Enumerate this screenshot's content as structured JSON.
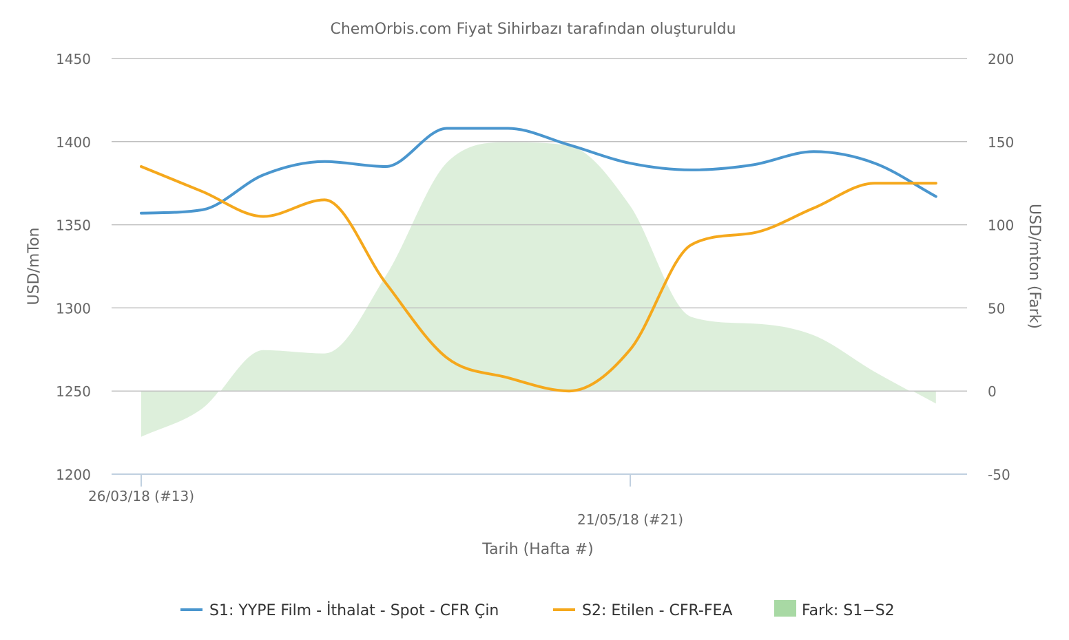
{
  "chart_data": {
    "type": "line",
    "title": "ChemOrbis.com Fiyat Sihirbazı tarafından oluşturuldu",
    "xlabel": "Tarih (Hafta #)",
    "ylabel": "USD/mTon",
    "ylabel_right": "USD/mton (Fark)",
    "x_tick_labels": [
      "26/03/18 (#13)",
      "21/05/18 (#21)"
    ],
    "x": [
      "26/03/18",
      "02/04/18",
      "09/04/18",
      "16/04/18",
      "23/04/18",
      "30/04/18",
      "07/05/18",
      "14/05/18",
      "21/05/18",
      "28/05/18",
      "04/06/18",
      "11/06/18",
      "18/06/18",
      "25/06/18"
    ],
    "ylim": [
      1200,
      1450
    ],
    "yticks": [
      1200,
      1250,
      1300,
      1350,
      1400,
      1450
    ],
    "y2lim": [
      -50,
      200
    ],
    "y2ticks": [
      -50,
      0,
      50,
      100,
      150,
      200
    ],
    "grid": true,
    "legend_position": "bottom",
    "series": [
      {
        "name": "S1: YYPE Film - İthalat - Spot - CFR Çin",
        "color": "#4a96ce",
        "axis": "left",
        "values": [
          1357,
          1359,
          1380,
          1388,
          1385,
          1408,
          1408,
          1398,
          1387,
          1383,
          1386,
          1394,
          1387,
          1367
        ]
      },
      {
        "name": "S2: Etilen - CFR-FEA",
        "color": "#f5a81c",
        "axis": "left",
        "values": [
          1385,
          1370,
          1355,
          1365,
          1315,
          1270,
          1258,
          1250,
          1275,
          1338,
          1345,
          1360,
          1375,
          1375
        ]
      },
      {
        "name": "Fark: S1−S2",
        "color": "#a8d9a4",
        "axis": "right",
        "type": "area",
        "values": [
          -28,
          -11,
          25,
          23,
          70,
          138,
          150,
          148,
          112,
          45,
          41,
          34,
          12,
          -8
        ]
      }
    ]
  }
}
